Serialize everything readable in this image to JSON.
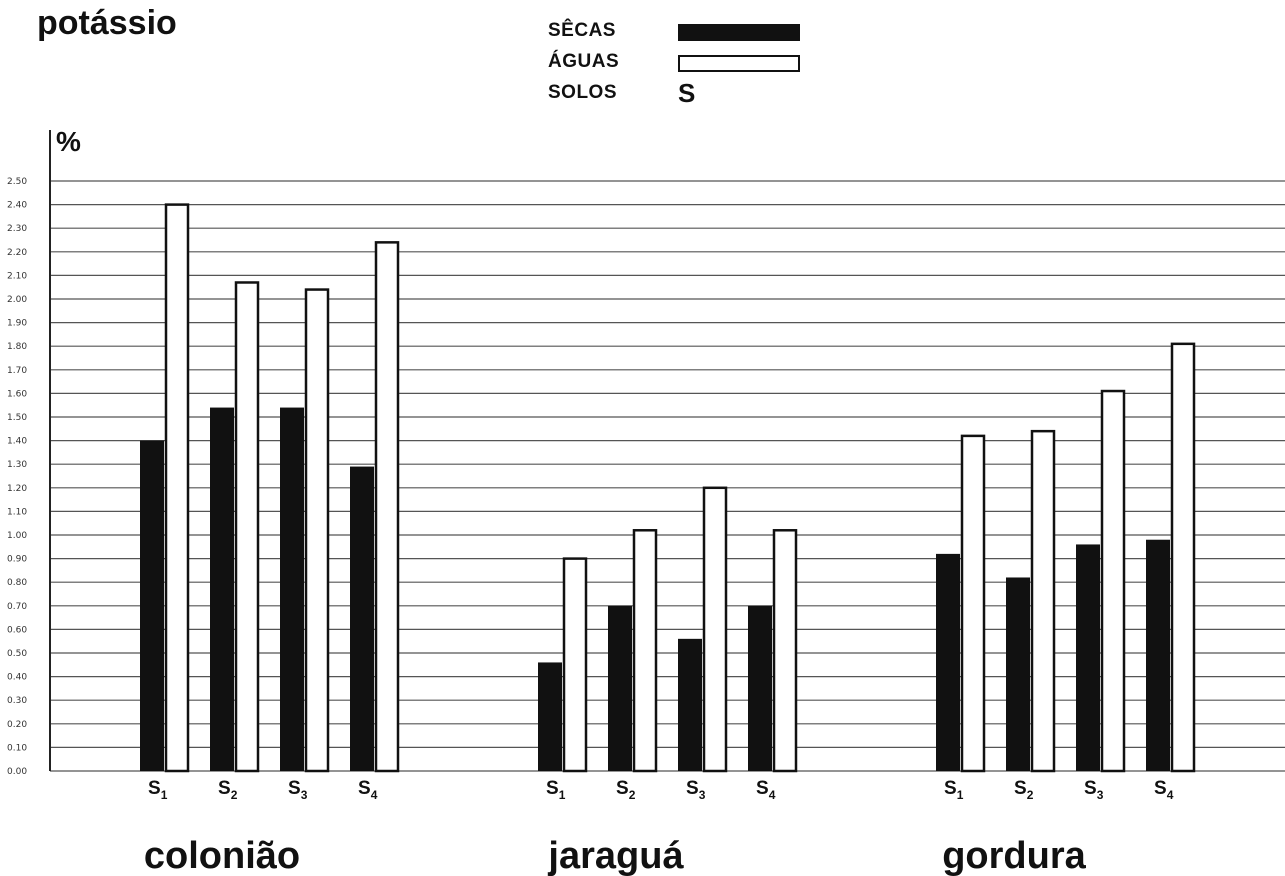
{
  "chart_data": {
    "type": "bar",
    "title": "potássio",
    "ylabel": "%",
    "ylim": [
      0,
      2.5
    ],
    "ytick_labels": [
      "0.00",
      "0.10",
      "0.20",
      "0.30",
      "0.40",
      "0.50",
      "0.60",
      "0.70",
      "0.80",
      "0.90",
      "1.00",
      "1.10",
      "1.20",
      "1.30",
      "1.40",
      "1.50",
      "1.60",
      "1.70",
      "1.80",
      "1.90",
      "2.00",
      "2.10",
      "2.20",
      "2.30",
      "2.40",
      "2.50"
    ],
    "legend": {
      "placement": "top-center",
      "entries": [
        {
          "label": "SÊCAS",
          "style": "filled",
          "color": "#111111"
        },
        {
          "label": "ÁGUAS",
          "style": "outline",
          "color": "#ffffff"
        },
        {
          "label": "SOLOS",
          "symbol": "S"
        }
      ]
    },
    "soil_labels": [
      "S1",
      "S2",
      "S3",
      "S4"
    ],
    "groups": [
      {
        "name": "colonião",
        "series": {
          "SÊCAS": [
            1.4,
            1.54,
            1.54,
            1.29
          ],
          "ÁGUAS": [
            2.4,
            2.07,
            2.04,
            2.24
          ]
        }
      },
      {
        "name": "jaraguá",
        "series": {
          "SÊCAS": [
            0.46,
            0.7,
            0.56,
            0.7
          ],
          "ÁGUAS": [
            0.9,
            1.02,
            1.2,
            1.02
          ]
        }
      },
      {
        "name": "gordura",
        "series": {
          "SÊCAS": [
            0.92,
            0.82,
            0.96,
            0.98
          ],
          "ÁGUAS": [
            1.42,
            1.44,
            1.61,
            1.81
          ]
        }
      }
    ],
    "grid": true
  }
}
